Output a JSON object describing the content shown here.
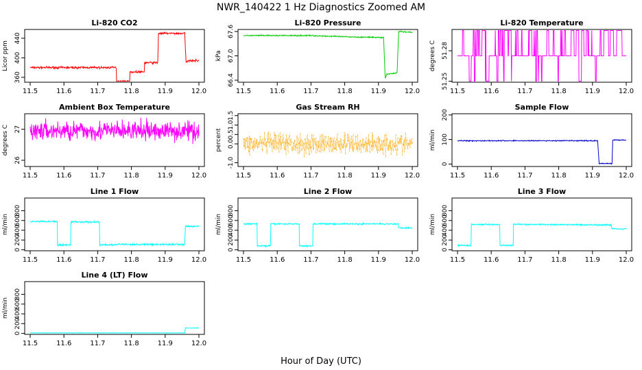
{
  "figure": {
    "title": "NWR_140422  1 Hz Diagnostics Zoomed AM",
    "xlabel": "Hour of Day (UTC)"
  },
  "chart_data": [
    {
      "type": "line",
      "title": "Li-820 CO2",
      "ylabel": "Licor ppm",
      "color": "#ff0000",
      "xlim": [
        11.5,
        12.0
      ],
      "ylim": [
        350,
        458
      ],
      "yticks": [
        360,
        400,
        440
      ],
      "xticks": [
        11.5,
        11.6,
        11.7,
        11.8,
        11.9,
        12.0
      ],
      "series": [
        {
          "noise": 1.5,
          "points": [
            [
              11.5,
              380
            ],
            [
              11.755,
              380
            ],
            [
              11.756,
              352
            ],
            [
              11.795,
              352
            ],
            [
              11.796,
              371
            ],
            [
              11.838,
              371
            ],
            [
              11.839,
              390
            ],
            [
              11.878,
              390
            ],
            [
              11.879,
              420
            ],
            [
              11.88,
              450
            ],
            [
              11.958,
              450
            ],
            [
              11.962,
              390
            ],
            [
              11.97,
              395
            ],
            [
              12.0,
              394
            ]
          ]
        }
      ]
    },
    {
      "type": "line",
      "title": "Li-820 Pressure",
      "ylabel": "kPa",
      "color": "#00cc00",
      "xlim": [
        11.5,
        12.0
      ],
      "ylim": [
        66.35,
        67.65
      ],
      "yticks": [
        66.4,
        67.0,
        67.6
      ],
      "xticks": [
        11.5,
        11.6,
        11.7,
        11.8,
        11.9,
        12.0
      ],
      "series": [
        {
          "noise": 0.01,
          "points": [
            [
              11.5,
              67.5
            ],
            [
              11.7,
              67.5
            ],
            [
              11.8,
              67.47
            ],
            [
              11.915,
              67.45
            ],
            [
              11.92,
              66.45
            ],
            [
              11.925,
              66.55
            ],
            [
              11.955,
              66.58
            ],
            [
              11.96,
              67.6
            ],
            [
              12.0,
              67.58
            ]
          ]
        }
      ]
    },
    {
      "type": "line",
      "title": "Li-820 Temperature",
      "ylabel": "degrees C",
      "color": "#ff00ff",
      "xlim": [
        11.5,
        12.0
      ],
      "ylim": [
        51.249,
        51.301
      ],
      "yticks": [
        51.25,
        51.28
      ],
      "xticks": [
        11.5,
        11.6,
        11.7,
        11.8,
        11.9,
        12.0
      ],
      "series": [
        {
          "mode": "toggle",
          "levels": [
            51.25,
            51.275,
            51.3
          ],
          "points": [
            [
              11.5,
              51.275
            ],
            [
              12.0,
              51.275
            ]
          ]
        }
      ]
    },
    {
      "type": "line",
      "title": "Ambient Box Temperature",
      "ylabel": "degrees C",
      "color": "#ff00ff",
      "xlim": [
        11.5,
        12.0
      ],
      "ylim": [
        25.8,
        27.5
      ],
      "yticks": [
        26.0,
        27.0
      ],
      "xticks": [
        11.5,
        11.6,
        11.7,
        11.8,
        11.9,
        12.0
      ],
      "series": [
        {
          "noise": 0.22,
          "points": [
            [
              11.5,
              26.95
            ],
            [
              12.0,
              26.95
            ]
          ]
        }
      ]
    },
    {
      "type": "scatter",
      "title": "Gas Stream RH",
      "ylabel": "percent",
      "color": "#ffa500",
      "xlim": [
        11.5,
        12.0
      ],
      "ylim": [
        -1.2,
        1.6
      ],
      "yticks": [
        -1.0,
        0.0,
        0.5,
        1.0,
        1.5
      ],
      "xticks": [
        11.5,
        11.6,
        11.7,
        11.8,
        11.9,
        12.0
      ],
      "series": [
        {
          "noise": 0.38,
          "points": [
            [
              11.5,
              0.0
            ],
            [
              12.0,
              0.0
            ]
          ]
        }
      ]
    },
    {
      "type": "line",
      "title": "Sample Flow",
      "ylabel": "ml/min",
      "color": "#0000cc",
      "xlim": [
        11.5,
        12.0
      ],
      "ylim": [
        -10,
        205
      ],
      "yticks": [
        0,
        100,
        200
      ],
      "xticks": [
        11.5,
        11.6,
        11.7,
        11.8,
        11.9,
        12.0
      ],
      "series": [
        {
          "noise": 1.5,
          "points": [
            [
              11.5,
              95
            ],
            [
              11.915,
              95
            ],
            [
              11.92,
              2
            ],
            [
              11.958,
              2
            ],
            [
              11.96,
              98
            ],
            [
              12.0,
              98
            ]
          ]
        }
      ]
    },
    {
      "type": "line",
      "title": "Line 1 Flow",
      "ylabel": "ml/min",
      "color": "#00ffff",
      "xlim": [
        11.5,
        12.0
      ],
      "ylim": [
        -20,
        1060
      ],
      "yticks": [
        0,
        200,
        400,
        600,
        800
      ],
      "xticks": [
        11.5,
        11.6,
        11.7,
        11.8,
        11.9,
        12.0
      ],
      "series": [
        {
          "noise": 12,
          "points": [
            [
              11.5,
              580
            ],
            [
              11.58,
              580
            ],
            [
              11.581,
              100
            ],
            [
              11.62,
              100
            ],
            [
              11.621,
              570
            ],
            [
              11.705,
              570
            ],
            [
              11.706,
              100
            ],
            [
              11.75,
              100
            ],
            [
              11.751,
              110
            ],
            [
              11.958,
              110
            ],
            [
              11.96,
              480
            ],
            [
              12.0,
              480
            ]
          ]
        }
      ]
    },
    {
      "type": "line",
      "title": "Line 2 Flow",
      "ylabel": "ml/min",
      "color": "#00ffff",
      "xlim": [
        11.5,
        12.0
      ],
      "ylim": [
        -20,
        1060
      ],
      "yticks": [
        0,
        200,
        400,
        600,
        800
      ],
      "xticks": [
        11.5,
        11.6,
        11.7,
        11.8,
        11.9,
        12.0
      ],
      "series": [
        {
          "noise": 10,
          "points": [
            [
              11.5,
              530
            ],
            [
              11.54,
              530
            ],
            [
              11.541,
              80
            ],
            [
              11.58,
              80
            ],
            [
              11.581,
              530
            ],
            [
              11.665,
              530
            ],
            [
              11.666,
              80
            ],
            [
              11.705,
              80
            ],
            [
              11.706,
              530
            ],
            [
              11.958,
              530
            ],
            [
              11.96,
              450
            ],
            [
              12.0,
              450
            ]
          ]
        }
      ]
    },
    {
      "type": "line",
      "title": "Line 3 Flow",
      "ylabel": "ml/min",
      "color": "#00ffff",
      "xlim": [
        11.5,
        12.0
      ],
      "ylim": [
        -20,
        1060
      ],
      "yticks": [
        0,
        200,
        400,
        600,
        800
      ],
      "xticks": [
        11.5,
        11.6,
        11.7,
        11.8,
        11.9,
        12.0
      ],
      "series": [
        {
          "noise": 10,
          "points": [
            [
              11.5,
              90
            ],
            [
              11.54,
              90
            ],
            [
              11.541,
              520
            ],
            [
              11.625,
              520
            ],
            [
              11.626,
              90
            ],
            [
              11.665,
              90
            ],
            [
              11.666,
              520
            ],
            [
              11.955,
              510
            ],
            [
              11.958,
              430
            ],
            [
              12.0,
              430
            ]
          ]
        }
      ]
    },
    {
      "type": "line",
      "title": "Line 4 (LT) Flow",
      "ylabel": "ml/min",
      "color": "#00ffff",
      "xlim": [
        11.5,
        12.0
      ],
      "ylim": [
        -20,
        1060
      ],
      "yticks": [
        0,
        200,
        400,
        600,
        800
      ],
      "xticks": [
        11.5,
        11.6,
        11.7,
        11.8,
        11.9,
        12.0
      ],
      "series": [
        {
          "noise": 3,
          "points": [
            [
              11.5,
              10
            ],
            [
              11.958,
              10
            ],
            [
              11.96,
              110
            ],
            [
              12.0,
              110
            ]
          ]
        }
      ]
    }
  ]
}
